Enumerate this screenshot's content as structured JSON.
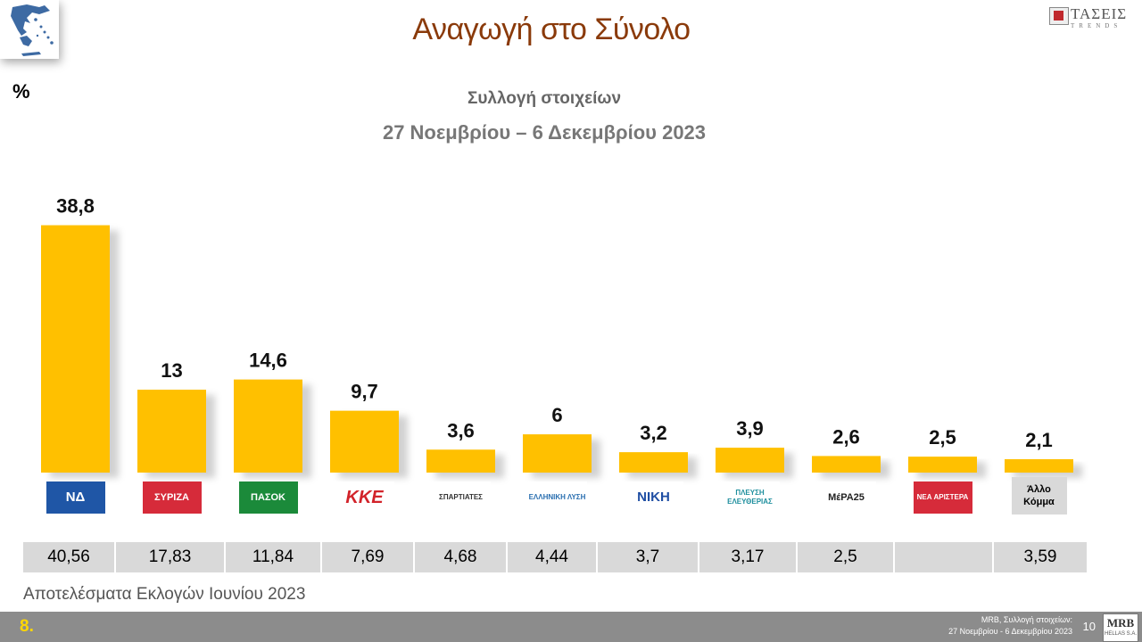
{
  "header": {
    "title": "Αναγωγή στο Σύνολο",
    "brand_main": "ΤΑΣΕΙΣ",
    "brand_sub": "TRENDS",
    "unit": "%",
    "subtitle": "Συλλογή στοιχείων",
    "date_range": "27 Νοεμβρίου – 6 Δεκεμβρίου  2023"
  },
  "chart_data": {
    "type": "bar",
    "title": "Αναγωγή στο Σύνολο",
    "ylabel": "%",
    "ylim": [
      0,
      40
    ],
    "grid": false,
    "categories": [
      "Νέα Δημοκρατία",
      "ΣΥΡΙΖΑ",
      "ΠΑΣΟΚ",
      "ΚΚΕ",
      "Σπαρτιάτες",
      "Ελληνική Λύση",
      "Νίκη",
      "Πλεύση Ελευθερίας",
      "ΜέΡΑ25",
      "Νέα Αριστερά",
      "Άλλο Κόμμα"
    ],
    "values": [
      38.8,
      13,
      14.6,
      9.7,
      3.6,
      6,
      3.2,
      3.9,
      2.6,
      2.5,
      2.1
    ],
    "value_labels": [
      "38,8",
      "13",
      "14,6",
      "9,7",
      "3,6",
      "6",
      "3,2",
      "3,9",
      "2,6",
      "2,5",
      "2,1"
    ],
    "bar_color": "#ffc000"
  },
  "logos": [
    {
      "text": "ΝΔ",
      "bg": "#1f56a6",
      "fg": "#ffffff"
    },
    {
      "text": "ΣΥΡΙΖΑ",
      "bg": "#d62b3a",
      "fg": "#ffffff"
    },
    {
      "text": "ΠΑΣΟΚ",
      "bg": "#1b8a3a",
      "fg": "#ffffff"
    },
    {
      "text": "ΚΚΕ",
      "bg": "#ffffff",
      "fg": "#d2232a"
    },
    {
      "text": "ΣΠΑΡΤΙΑΤΕΣ",
      "bg": "#ffffff",
      "fg": "#333333"
    },
    {
      "text": "ΕΛΛΗΝΙΚΗ ΛΥΣΗ",
      "bg": "#ffffff",
      "fg": "#2a6fb0"
    },
    {
      "text": "ΝΙΚΗ",
      "bg": "#ffffff",
      "fg": "#1f4ea3"
    },
    {
      "text": "ΠΛΕΥΣΗ ΕΛΕΥΘΕΡΙΑΣ",
      "bg": "#ffffff",
      "fg": "#1f8f9e"
    },
    {
      "text": "ΜέΡΑ25",
      "bg": "#ffffff",
      "fg": "#222222"
    },
    {
      "text": "ΝΕΑ ΑΡΙΣΤΕΡΑ",
      "bg": "#d62b3a",
      "fg": "#ffffff"
    },
    {
      "text": "Άλλο Κόμμα",
      "bg": "#d9d9d9",
      "fg": "#000000"
    }
  ],
  "previous_results": {
    "label": "Αποτελέσματα Εκλογών Ιουνίου 2023",
    "values": [
      "40,56",
      "17,83",
      "11,84",
      "7,69",
      "4,68",
      "4,44",
      "3,7",
      "3,17",
      "2,5",
      "",
      "3,59"
    ]
  },
  "footer": {
    "slide_number": "8.",
    "source_line1": "MRB, Συλλογή στοιχείων:",
    "source_line2": "27 Νοεμβρίου - 6 Δεκεμβρίου 2023",
    "page_number": "10",
    "mrb_main": "MRB",
    "mrb_sub": "HELLAS S.A."
  }
}
